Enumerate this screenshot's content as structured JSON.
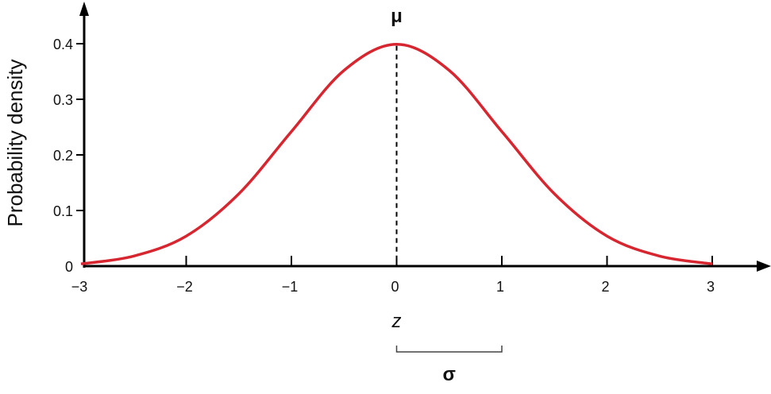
{
  "chart_data": {
    "type": "line",
    "title": "",
    "xlabel": "z",
    "ylabel": "Probability density",
    "xlim": [
      -3,
      3.5
    ],
    "ylim": [
      0,
      0.45
    ],
    "x_ticks": [
      -3,
      -2,
      -1,
      0,
      1,
      2,
      3
    ],
    "x_tick_labels": [
      "−3",
      "−2",
      "−1",
      "0",
      "1",
      "2",
      "3"
    ],
    "y_ticks": [
      0,
      0.1,
      0.2,
      0.3,
      0.4
    ],
    "y_tick_labels": [
      "0",
      "0.1",
      "0.2",
      "0.3",
      "0.4"
    ],
    "grid": false,
    "series": [
      {
        "color": "#d7262f",
        "x": [
          -3,
          -2.5,
          -2,
          -1.5,
          -1,
          -0.5,
          0,
          0.5,
          1,
          1.5,
          2,
          2.5,
          3
        ],
        "y": [
          0.004,
          0.018,
          0.054,
          0.13,
          0.242,
          0.352,
          0.399,
          0.352,
          0.242,
          0.13,
          0.054,
          0.018,
          0.004
        ]
      }
    ],
    "annotations": {
      "mean_symbol": "μ",
      "mean_x": 0,
      "sd_symbol": "σ",
      "sd_bracket": [
        0,
        1
      ]
    }
  }
}
